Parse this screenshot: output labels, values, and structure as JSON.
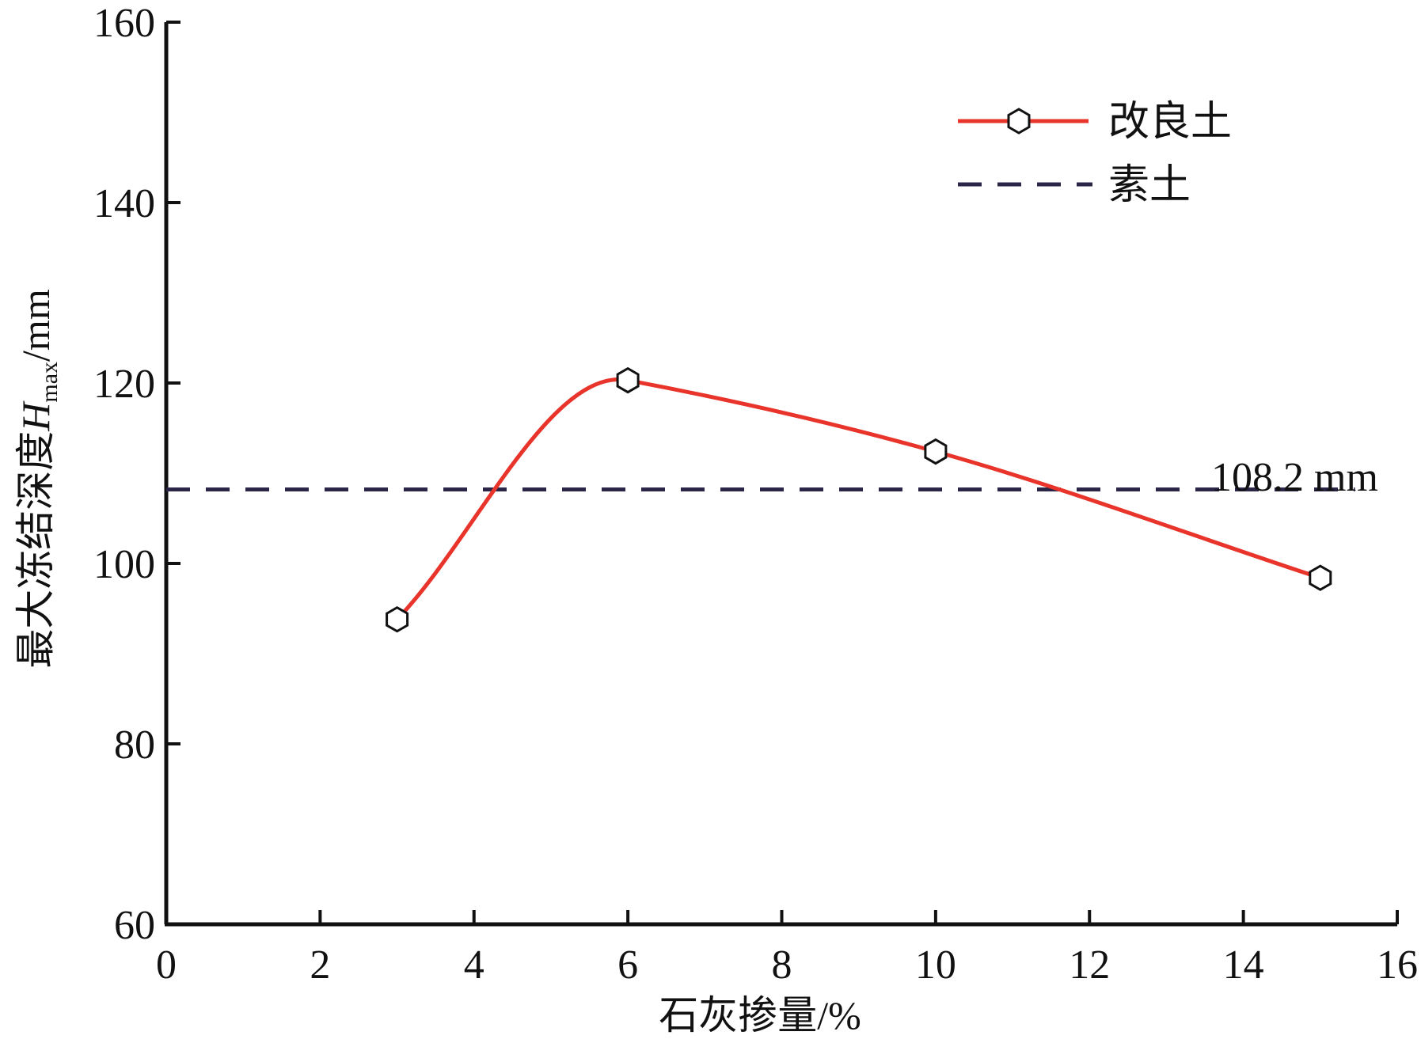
{
  "chart_data": {
    "type": "line",
    "xlabel": "石灰掺量/%",
    "ylabel": {
      "prefix": "最大冻结深度",
      "var": "H",
      "sub": "max",
      "suffix": "/mm"
    },
    "xlim": [
      0,
      16
    ],
    "ylim": [
      60,
      160
    ],
    "x_ticks": [
      0,
      2,
      4,
      6,
      8,
      10,
      12,
      14,
      16
    ],
    "y_ticks": [
      60,
      80,
      100,
      120,
      140,
      160
    ],
    "grid": false,
    "legend_position": "top-right",
    "series": [
      {
        "name": "改良土",
        "style": "smooth-line-hexagon-markers",
        "color": "#e8342a",
        "points": [
          {
            "x": 3,
            "y": 93.8
          },
          {
            "x": 6,
            "y": 120.3
          },
          {
            "x": 10,
            "y": 112.4
          },
          {
            "x": 15,
            "y": 98.4
          }
        ]
      },
      {
        "name": "素土",
        "style": "dashed",
        "color": "#2b2647",
        "value": 108.2
      }
    ],
    "annotations": [
      {
        "text": "108.2 mm"
      }
    ]
  }
}
